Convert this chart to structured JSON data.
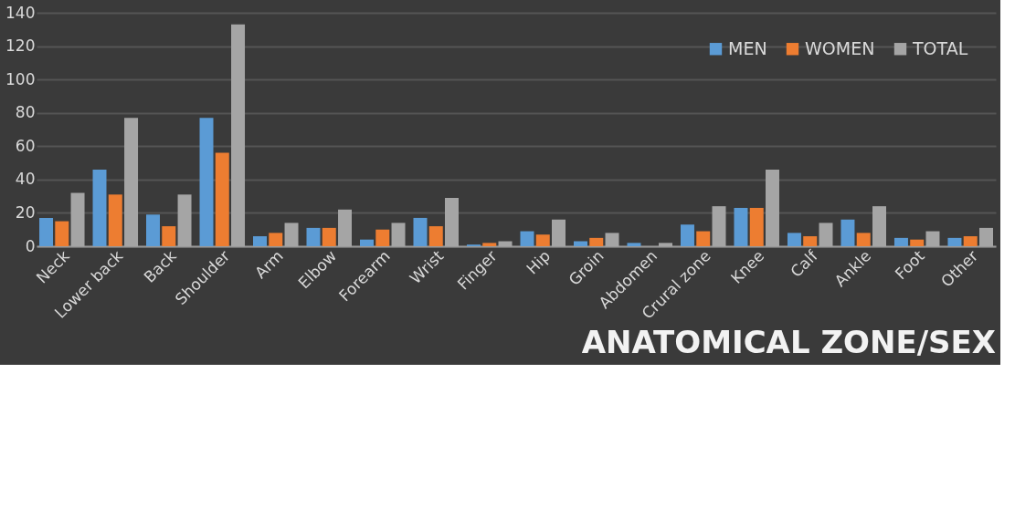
{
  "chart_data": {
    "type": "bar",
    "title": "ANATOMICAL ZONE/SEX",
    "categories": [
      "Neck",
      "Lower back",
      "Back",
      "Shoulder",
      "Arm",
      "Elbow",
      "Forearm",
      "Wrist",
      "Finger",
      "Hip",
      "Groin",
      "Abdomen",
      "Crural zone",
      "Knee",
      "Calf",
      "Ankle",
      "Foot",
      "Other"
    ],
    "series": [
      {
        "name": "MEN",
        "color": "#5b9bd5",
        "values": [
          17,
          46,
          19,
          77,
          6,
          11,
          4,
          17,
          1,
          9,
          3,
          2,
          13,
          23,
          8,
          16,
          5,
          5
        ]
      },
      {
        "name": "WOMEN",
        "color": "#ed7d31",
        "values": [
          15,
          31,
          12,
          56,
          8,
          11,
          10,
          12,
          2,
          7,
          5,
          0,
          9,
          23,
          6,
          8,
          4,
          6
        ]
      },
      {
        "name": "TOTAL",
        "color": "#a5a5a5",
        "values": [
          32,
          77,
          31,
          133,
          14,
          22,
          14,
          29,
          3,
          16,
          8,
          2,
          24,
          46,
          14,
          24,
          9,
          11
        ]
      }
    ],
    "ylim": [
      0,
      140
    ],
    "yticks": [
      0,
      20,
      40,
      60,
      80,
      100,
      120,
      140
    ],
    "grid": "y",
    "legend": "top right"
  }
}
